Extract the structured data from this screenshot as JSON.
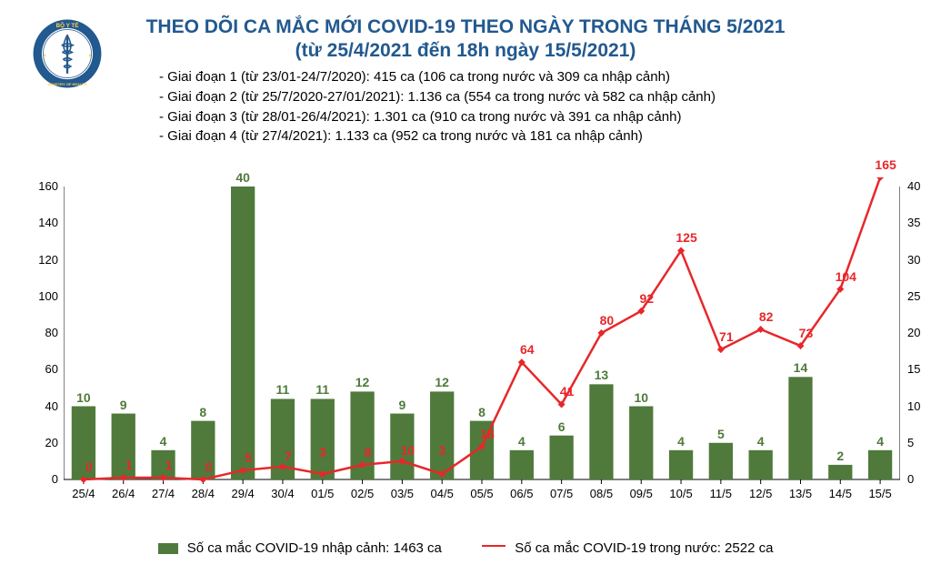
{
  "title_line1": "THEO DÕI CA MẮC MỚI COVID-19 THEO NGÀY TRONG THÁNG 5/2021",
  "title_line2": "(từ 25/4/2021 đến 18h ngày 15/5/2021)",
  "notes": [
    "- Giai đoạn 1 (từ 23/01-24/7/2020): 415 ca (106 ca trong nước và 309 ca nhập cảnh)",
    "- Giai đoạn 2 (từ 25/7/2020-27/01/2021): 1.136 ca (554 ca trong nước và 582 ca nhập cảnh)",
    "- Giai đoạn 3 (từ 28/01-26/4/2021): 1.301 ca (910 ca trong nước và 391 ca nhập cảnh)",
    "- Giai đoạn 4 (từ 27/4/2021): 1.133 ca (952 ca trong nước và 181 ca nhập cảnh)"
  ],
  "chart": {
    "type": "bar-line-combo",
    "categories": [
      "25/4",
      "26/4",
      "27/4",
      "28/4",
      "29/4",
      "30/4",
      "01/5",
      "02/5",
      "03/5",
      "04/5",
      "05/5",
      "06/5",
      "07/5",
      "08/5",
      "09/5",
      "10/5",
      "11/5",
      "12/5",
      "13/5",
      "14/5",
      "15/5"
    ],
    "bars": {
      "values": [
        10,
        9,
        4,
        8,
        40,
        11,
        11,
        12,
        9,
        12,
        8,
        4,
        6,
        13,
        10,
        4,
        5,
        4,
        14,
        2,
        4
      ],
      "color": "#4f7a3b",
      "axis": "right",
      "bar_width_ratio": 0.6
    },
    "line": {
      "values": [
        0,
        1,
        1,
        0,
        5,
        7,
        3,
        8,
        10,
        3,
        18,
        64,
        41,
        80,
        92,
        125,
        71,
        82,
        73,
        104,
        165
      ],
      "color": "#e8272a",
      "axis": "left",
      "marker": "diamond",
      "line_width": 2.5
    },
    "left_axis": {
      "min": 0,
      "max": 160,
      "step": 20,
      "color": "#000000"
    },
    "right_axis": {
      "min": 0,
      "max": 40,
      "step": 5,
      "color": "#000000"
    },
    "background_color": "#ffffff",
    "label_fontsize": 13,
    "data_label_fontsize": 14,
    "title_color": "#22598f"
  },
  "legend": {
    "bar_label": "Số ca mắc COVID-19 nhập cảnh: 1463 ca",
    "line_label": "Số ca mắc COVID-19 trong nước: 2522 ca",
    "bar_color": "#4f7a3b",
    "line_color": "#e8272a"
  },
  "logo": {
    "text_top": "BỘ Y TẾ",
    "text_bottom": "MINISTRY OF HEALTH",
    "ring_color": "#22598f",
    "center_icon": "asclepius"
  },
  "line_label_offsets": {
    "5": -4,
    "6": -16,
    "8": -4,
    "9": -18
  }
}
